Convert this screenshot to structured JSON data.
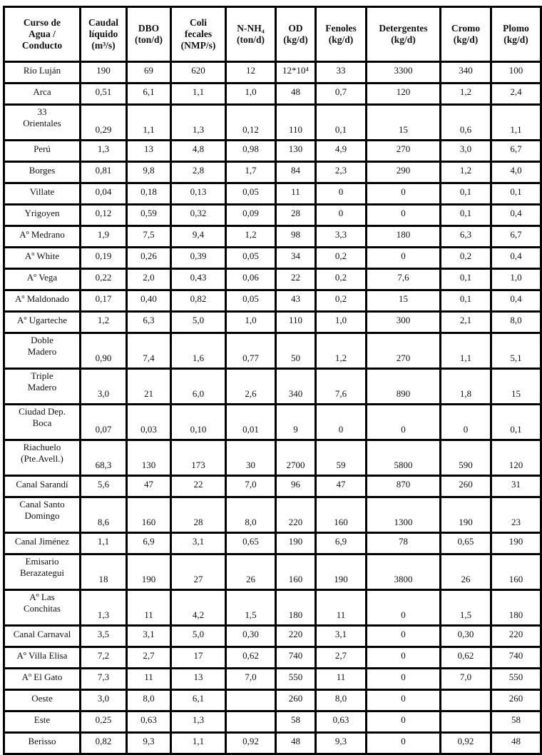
{
  "table": {
    "headers": [
      "Curso de\nAgua /\nConducto",
      "Caudal\nlíquido\n(m³/s)",
      "DBO\n(ton/d)",
      "Coli\nfecales\n(NMP/s)",
      "N-NH₄\n(ton/d)",
      "OD\n(kg/d)",
      "Fenoles\n(kg/d)",
      "Detergentes\n(kg/d)",
      "Cromo\n(kg/d)",
      "Plomo\n(kg/d)"
    ],
    "rows": [
      [
        "Río Luján",
        "190",
        "69",
        "620",
        "12",
        "12*10⁴",
        "33",
        "3300",
        "340",
        "100"
      ],
      [
        "Arca",
        "0,51",
        "6,1",
        "1,1",
        "1,0",
        "48",
        "0,7",
        "120",
        "1,2",
        "2,4"
      ],
      [
        "33\nOrientales",
        "0,29",
        "1,1",
        "1,3",
        "0,12",
        "110",
        "0,1",
        "15",
        "0,6",
        "1,1"
      ],
      [
        "Perú",
        "1,3",
        "13",
        "4,8",
        "0,98",
        "130",
        "4,9",
        "270",
        "3,0",
        "6,7"
      ],
      [
        "Borges",
        "0,81",
        "9,8",
        "2,8",
        "1,7",
        "84",
        "2,3",
        "290",
        "1,2",
        "4,0"
      ],
      [
        "Villate",
        "0,04",
        "0,18",
        "0,13",
        "0,05",
        "11",
        "0",
        "0",
        "0,1",
        "0,1"
      ],
      [
        "Yrigoyen",
        "0,12",
        "0,59",
        "0,32",
        "0,09",
        "28",
        "0",
        "0",
        "0,1",
        "0,4"
      ],
      [
        "Aº Medrano",
        "1,9",
        "7,5",
        "9,4",
        "1,2",
        "98",
        "3,3",
        "180",
        "6,3",
        "6,7"
      ],
      [
        "Aº White",
        "0,19",
        "0,26",
        "0,39",
        "0,05",
        "34",
        "0,2",
        "0",
        "0,2",
        "0,4"
      ],
      [
        "Aº Vega",
        "0,22",
        "2,0",
        "0,43",
        "0,06",
        "22",
        "0,2",
        "7,6",
        "0,1",
        "1,0"
      ],
      [
        "Aº Maldonado",
        "0,17",
        "0,40",
        "0,82",
        "0,05",
        "43",
        "0,2",
        "15",
        "0,1",
        "0,4"
      ],
      [
        "Aº Ugarteche",
        "1,2",
        "6,3",
        "5,0",
        "1,0",
        "110",
        "1,0",
        "300",
        "2,1",
        "8,0"
      ],
      [
        "Doble\nMadero",
        "0,90",
        "7,4",
        "1,6",
        "0,77",
        "50",
        "1,2",
        "270",
        "1,1",
        "5,1"
      ],
      [
        "Triple\nMadero",
        "3,0",
        "21",
        "6,0",
        "2,6",
        "340",
        "7,6",
        "890",
        "1,8",
        "15"
      ],
      [
        "Ciudad Dep.\nBoca",
        "0,07",
        "0,03",
        "0,10",
        "0,01",
        "9",
        "0",
        "0",
        "0",
        "0,1"
      ],
      [
        "Riachuelo\n(Pte.Avell.)",
        "68,3",
        "130",
        "173",
        "30",
        "2700",
        "59",
        "5800",
        "590",
        "120"
      ],
      [
        "Canal Sarandí",
        "5,6",
        "47",
        "22",
        "7,0",
        "96",
        "47",
        "870",
        "260",
        "31"
      ],
      [
        "Canal Santo\nDomingo",
        "8,6",
        "160",
        "28",
        "8,0",
        "220",
        "160",
        "1300",
        "190",
        "23"
      ],
      [
        "Canal Jiménez",
        "1,1",
        "6,9",
        "3,1",
        "0,65",
        "190",
        "6,9",
        "78",
        "0,65",
        "190"
      ],
      [
        "Emisario\nBerazategui",
        "18",
        "190",
        "27",
        "26",
        "160",
        "190",
        "3800",
        "26",
        "160"
      ],
      [
        "Aº Las\nConchitas",
        "1,3",
        "11",
        "4,2",
        "1,5",
        "180",
        "11",
        "0",
        "1,5",
        "180"
      ],
      [
        "Canal Carnaval",
        "3,5",
        "3,1",
        "5,0",
        "0,30",
        "220",
        "3,1",
        "0",
        "0,30",
        "220"
      ],
      [
        "Aº Villa Elisa",
        "7,2",
        "2,7",
        "17",
        "0,62",
        "740",
        "2,7",
        "0",
        "0,62",
        "740"
      ],
      [
        "Aº El Gato",
        "7,3",
        "11",
        "13",
        "7,0",
        "550",
        "11",
        "0",
        "7,0",
        "550"
      ],
      [
        "Oeste",
        "3,0",
        "8,0",
        "6,1",
        "",
        "260",
        "8,0",
        "0",
        "",
        "260"
      ],
      [
        "Este",
        "0,25",
        "0,63",
        "1,3",
        "",
        "58",
        "0,63",
        "0",
        "",
        "58"
      ],
      [
        "Berisso",
        "0,82",
        "9,3",
        "1,1",
        "0,92",
        "48",
        "9,3",
        "0",
        "0,92",
        "48"
      ]
    ]
  }
}
